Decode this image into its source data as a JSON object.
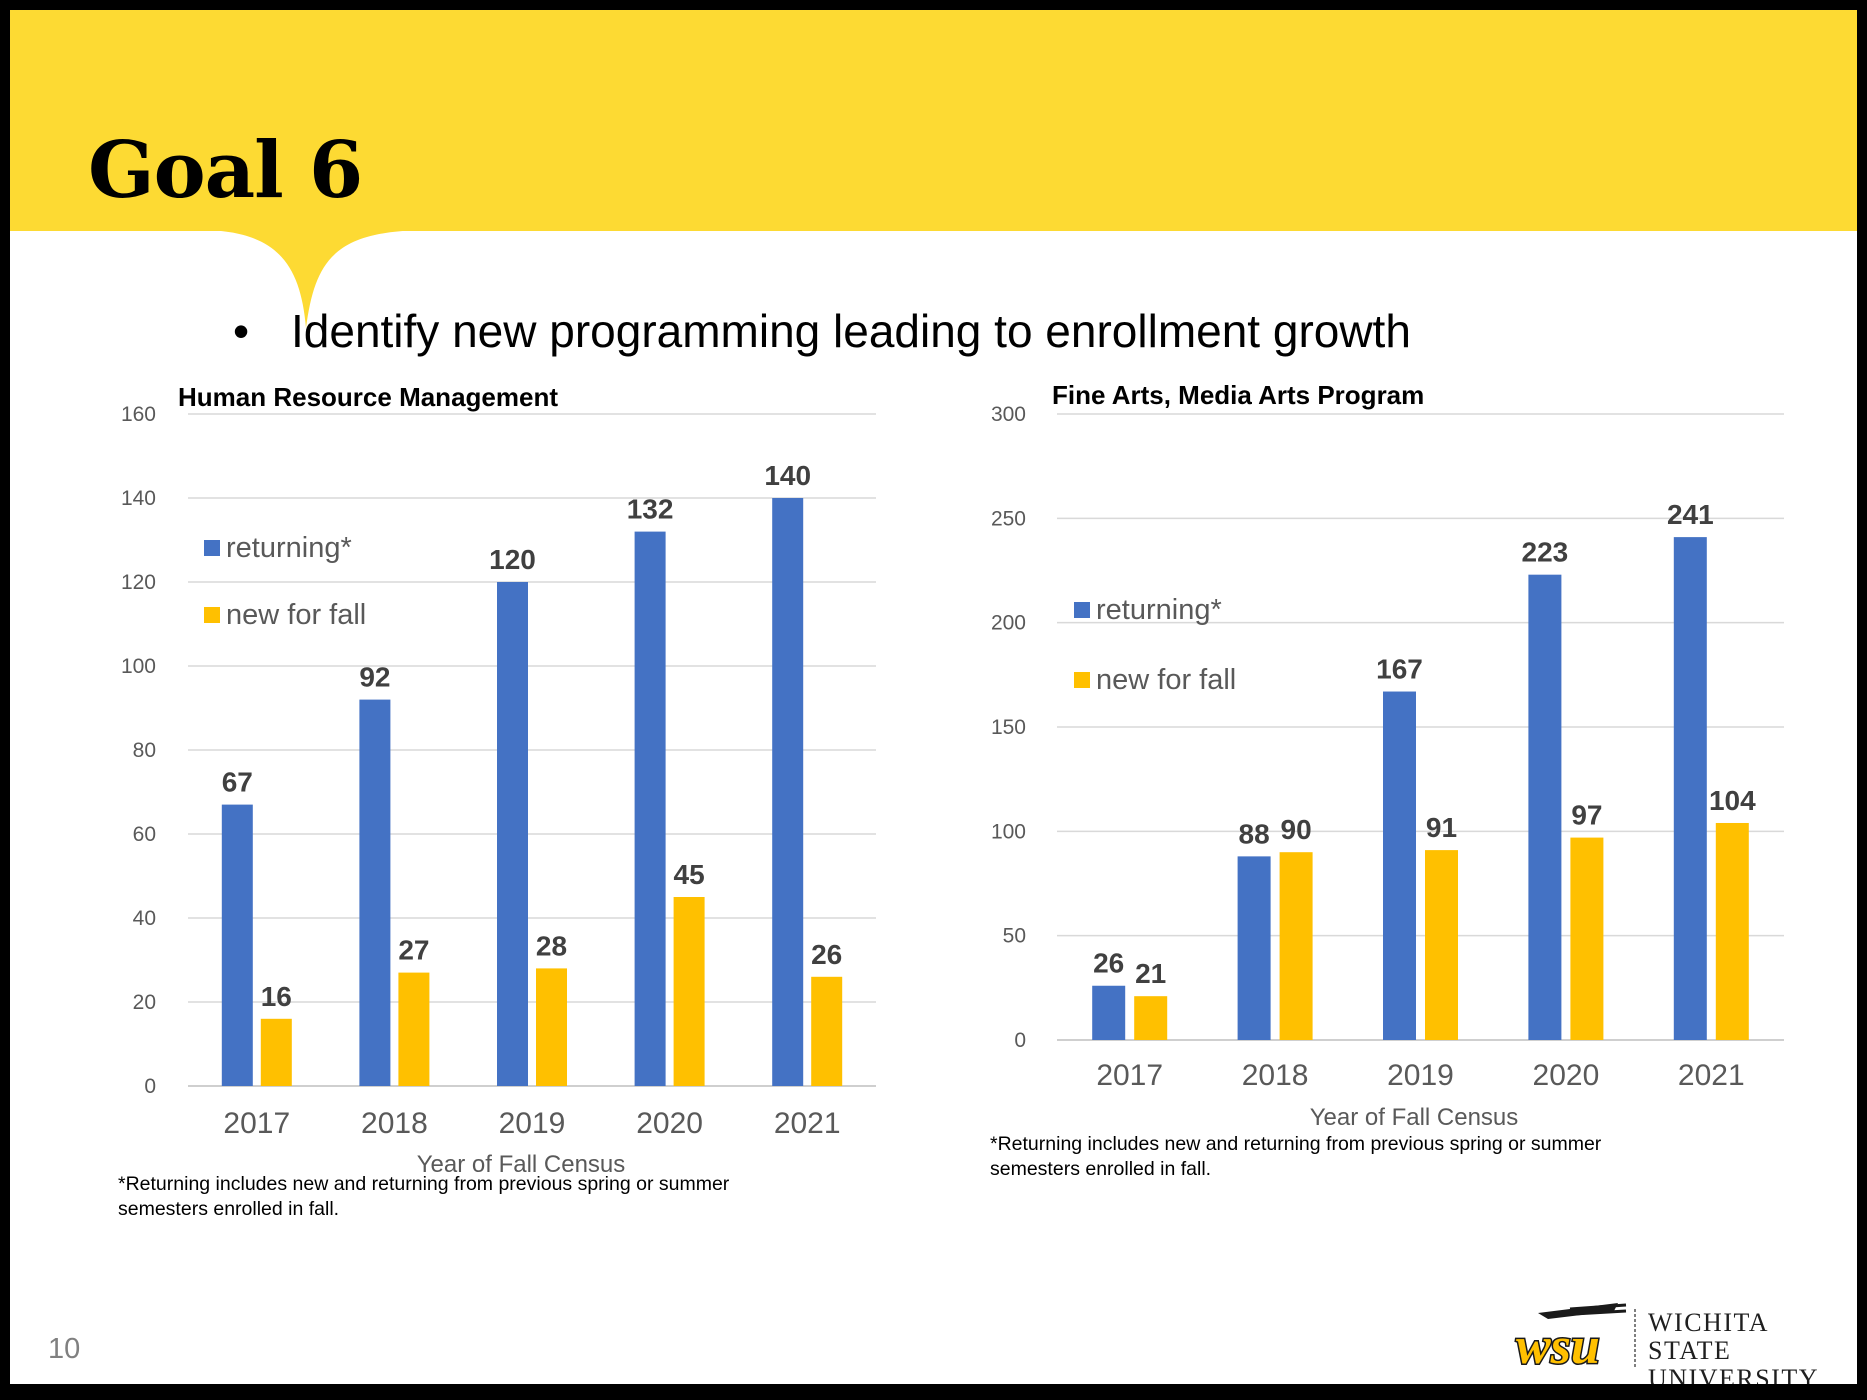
{
  "slide": {
    "title": "Goal 6",
    "bullet_marker": "•",
    "bullet_text": "Identify new programming leading to enrollment growth",
    "page_number": "10",
    "logo": {
      "monogram": "wsu",
      "line1": "Wichita State",
      "line2": "University"
    }
  },
  "colors": {
    "banner": "#fdda33",
    "returning": "#4472c4",
    "new_for_fall": "#ffc000",
    "gridline": "#d9d9d9",
    "axis_text": "#595959",
    "label_text": "#404040"
  },
  "chart_data": [
    {
      "type": "bar",
      "title": "Human Resource Management",
      "categories": [
        "2017",
        "2018",
        "2019",
        "2020",
        "2021"
      ],
      "series": [
        {
          "name": "returning*",
          "values": [
            67,
            92,
            120,
            132,
            140
          ]
        },
        {
          "name": "new for fall",
          "values": [
            16,
            27,
            28,
            45,
            26
          ]
        }
      ],
      "xlabel": "Year of Fall Census",
      "ylabel": "",
      "ylim": [
        0,
        160
      ],
      "yticks": [
        0,
        20,
        40,
        60,
        80,
        100,
        120,
        140,
        160
      ],
      "grid": true,
      "legend": "top-left",
      "footnote": "*Returning includes new and returning from previous spring or summer semesters enrolled in fall."
    },
    {
      "type": "bar",
      "title": "Fine Arts, Media Arts Program",
      "categories": [
        "2017",
        "2018",
        "2019",
        "2020",
        "2021"
      ],
      "series": [
        {
          "name": "returning*",
          "values": [
            26,
            88,
            167,
            223,
            241
          ]
        },
        {
          "name": "new for fall",
          "values": [
            21,
            90,
            91,
            97,
            104
          ]
        }
      ],
      "xlabel": "Year of Fall Census",
      "ylabel": "",
      "ylim": [
        0,
        300
      ],
      "yticks": [
        0,
        50,
        100,
        150,
        200,
        250,
        300
      ],
      "grid": true,
      "legend": "top-left",
      "footnote": "*Returning includes new and returning from previous spring or summer semesters enrolled in fall."
    }
  ]
}
